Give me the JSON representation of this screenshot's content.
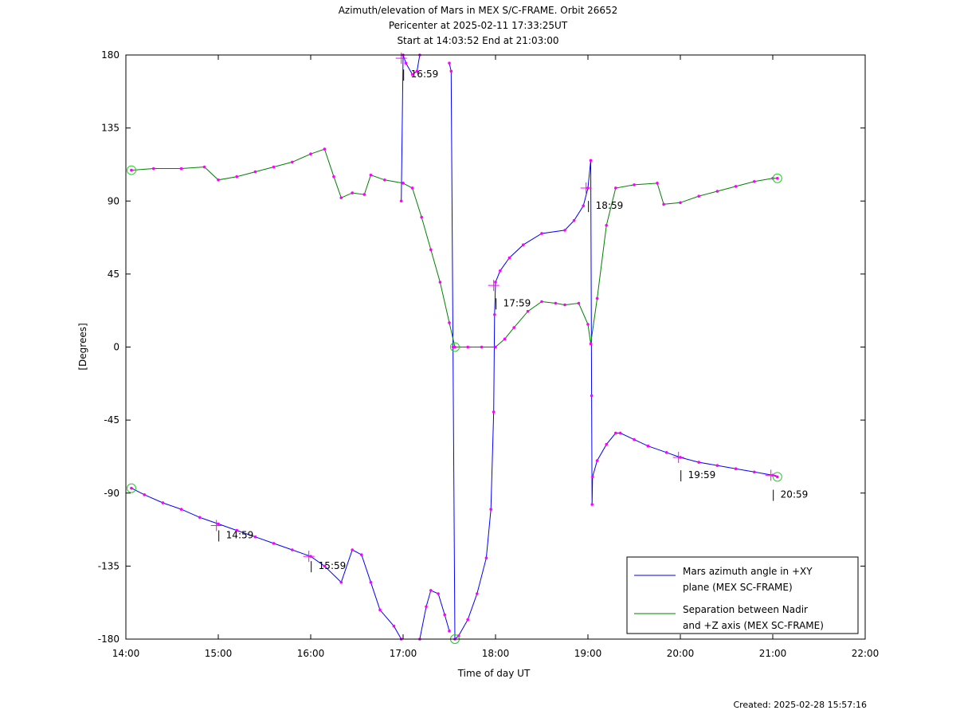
{
  "header": {
    "title": "Azimuth/elevation of Mars in MEX S/C-FRAME.  Orbit 26652",
    "subtitle1": "Pericenter at 2025-02-11 17:33:25UT",
    "subtitle2": "Start at 14:03:52 End at 21:03:00"
  },
  "footer": {
    "created": "Created: 2025-02-28 15:57:16"
  },
  "chart_data": {
    "type": "line",
    "xlabel": "Time of day UT",
    "ylabel": "[Degrees]",
    "xlim": [
      14,
      22
    ],
    "ylim": [
      -180,
      180
    ],
    "x_ticks": [
      14,
      15,
      16,
      17,
      18,
      19,
      20,
      21,
      22
    ],
    "x_tick_labels": [
      "14:00",
      "15:00",
      "16:00",
      "17:00",
      "18:00",
      "19:00",
      "20:00",
      "21:00",
      "22:00"
    ],
    "y_ticks": [
      180,
      135,
      90,
      45,
      0,
      -45,
      -90,
      -135,
      -180
    ],
    "y_tick_labels": [
      "180",
      "135",
      "90",
      "45",
      "0",
      "-45",
      "-90",
      "-135",
      "-180"
    ],
    "grid": false,
    "legend_position": "bottom-right",
    "series": [
      {
        "name": "Mars azimuth angle in +XY plane (MEX SC-FRAME)",
        "legend_lines": [
          "Mars azimuth angle in +XY",
          "plane (MEX SC-FRAME)"
        ],
        "color": "#0000ff",
        "segments": [
          [
            [
              14.06,
              -87
            ],
            [
              14.2,
              -91
            ],
            [
              14.4,
              -96
            ],
            [
              14.6,
              -100
            ],
            [
              14.8,
              -105
            ],
            [
              15.0,
              -109
            ],
            [
              15.2,
              -113
            ],
            [
              15.4,
              -117
            ],
            [
              15.6,
              -121
            ],
            [
              15.8,
              -125
            ],
            [
              16.0,
              -129
            ],
            [
              16.15,
              -135
            ],
            [
              16.33,
              -145
            ],
            [
              16.45,
              -125
            ],
            [
              16.55,
              -128
            ],
            [
              16.65,
              -145
            ],
            [
              16.75,
              -162
            ],
            [
              16.9,
              -172
            ],
            [
              16.98,
              -180
            ]
          ],
          [
            [
              16.98,
              90
            ],
            [
              17.0,
              180
            ],
            [
              17.03,
              175
            ],
            [
              17.1,
              168
            ],
            [
              17.15,
              170
            ],
            [
              17.18,
              180
            ]
          ],
          [
            [
              17.18,
              -180
            ],
            [
              17.25,
              -160
            ],
            [
              17.3,
              -150
            ],
            [
              17.38,
              -152
            ],
            [
              17.45,
              -165
            ],
            [
              17.5,
              -175
            ]
          ],
          [
            [
              17.5,
              175
            ],
            [
              17.52,
              170
            ],
            [
              17.54,
              0
            ],
            [
              17.56,
              -180
            ],
            [
              17.6,
              -178
            ],
            [
              17.7,
              -168
            ],
            [
              17.8,
              -152
            ],
            [
              17.9,
              -130
            ],
            [
              17.95,
              -100
            ],
            [
              17.98,
              -40
            ],
            [
              17.99,
              20
            ],
            [
              18.0,
              40
            ],
            [
              18.05,
              47
            ],
            [
              18.15,
              55
            ],
            [
              18.3,
              63
            ],
            [
              18.5,
              70
            ],
            [
              18.75,
              72
            ],
            [
              18.85,
              78
            ],
            [
              18.95,
              87
            ],
            [
              19.0,
              98
            ],
            [
              19.03,
              115
            ],
            [
              19.04,
              -30
            ],
            [
              19.045,
              -97
            ],
            [
              19.05,
              -80
            ],
            [
              19.1,
              -70
            ],
            [
              19.2,
              -60
            ],
            [
              19.3,
              -53
            ],
            [
              19.35,
              -53
            ],
            [
              19.5,
              -57
            ],
            [
              19.65,
              -61
            ],
            [
              19.85,
              -65
            ],
            [
              20.0,
              -68
            ],
            [
              20.2,
              -71
            ],
            [
              20.4,
              -73
            ],
            [
              20.6,
              -75
            ],
            [
              20.8,
              -77
            ],
            [
              21.0,
              -79
            ],
            [
              21.05,
              -80
            ]
          ]
        ]
      },
      {
        "name": "Separation between Nadir and +Z axis (MEX SC-FRAME)",
        "legend_lines": [
          "Separation between Nadir",
          "and +Z axis (MEX SC-FRAME)"
        ],
        "color": "#008000",
        "segments": [
          [
            [
              14.06,
              109
            ],
            [
              14.3,
              110
            ],
            [
              14.6,
              110
            ],
            [
              14.85,
              111
            ],
            [
              15.0,
              103
            ],
            [
              15.2,
              105
            ],
            [
              15.4,
              108
            ],
            [
              15.6,
              111
            ],
            [
              15.8,
              114
            ],
            [
              16.0,
              119
            ],
            [
              16.15,
              122
            ],
            [
              16.25,
              105
            ],
            [
              16.33,
              92
            ],
            [
              16.45,
              95
            ],
            [
              16.58,
              94
            ],
            [
              16.65,
              106
            ],
            [
              16.8,
              103
            ],
            [
              17.0,
              101
            ],
            [
              17.1,
              98
            ],
            [
              17.2,
              80
            ],
            [
              17.3,
              60
            ],
            [
              17.4,
              40
            ],
            [
              17.5,
              15
            ],
            [
              17.56,
              0
            ],
            [
              17.7,
              0
            ],
            [
              17.85,
              0
            ],
            [
              18.0,
              0
            ],
            [
              18.1,
              5
            ],
            [
              18.2,
              12
            ],
            [
              18.35,
              22
            ],
            [
              18.5,
              28
            ],
            [
              18.65,
              27
            ],
            [
              18.75,
              26
            ],
            [
              18.9,
              27
            ],
            [
              19.0,
              14
            ],
            [
              19.03,
              2
            ],
            [
              19.1,
              30
            ],
            [
              19.2,
              75
            ],
            [
              19.3,
              98
            ],
            [
              19.5,
              100
            ],
            [
              19.75,
              101
            ],
            [
              19.82,
              88
            ],
            [
              20.0,
              89
            ],
            [
              20.2,
              93
            ],
            [
              20.4,
              96
            ],
            [
              20.6,
              99
            ],
            [
              20.8,
              102
            ],
            [
              21.0,
              104
            ],
            [
              21.05,
              104
            ]
          ]
        ]
      }
    ],
    "annotations": [
      {
        "text": "14:59",
        "x": 14.98,
        "y": -110,
        "label_y": -110
      },
      {
        "text": "15:59",
        "x": 15.98,
        "y": -129,
        "label_y": -129
      },
      {
        "text": "16:59",
        "x": 16.98,
        "y": 178,
        "label_y": 174
      },
      {
        "text": "17:59",
        "x": 17.98,
        "y": 38,
        "label_y": 33
      },
      {
        "text": "18:59",
        "x": 18.98,
        "y": 98,
        "label_y": 93
      },
      {
        "text": "19:59",
        "x": 19.98,
        "y": -68,
        "label_y": -73
      },
      {
        "text": "20:59",
        "x": 20.98,
        "y": -79,
        "label_y": -85
      }
    ],
    "endpoint_markers": [
      [
        14.06,
        -87
      ],
      [
        14.06,
        109
      ],
      [
        21.05,
        -80
      ],
      [
        21.05,
        104
      ],
      [
        17.56,
        0
      ],
      [
        17.56,
        -180
      ]
    ]
  }
}
